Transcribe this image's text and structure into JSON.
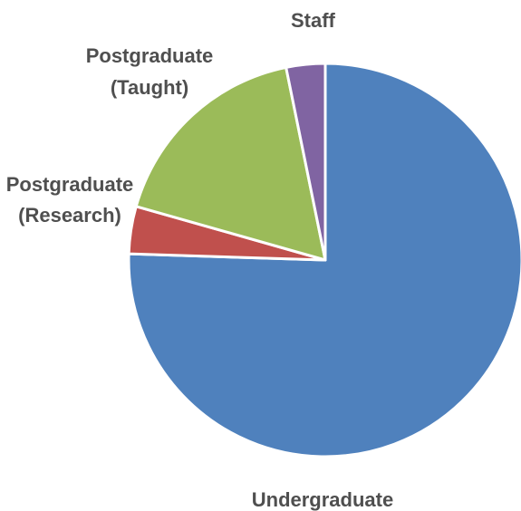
{
  "chart_data": {
    "type": "pie",
    "categories": [
      "Undergraduate",
      "Postgraduate (Research)",
      "Postgraduate (Taught)",
      "Staff"
    ],
    "values": [
      75.5,
      3.9,
      17.4,
      3.2
    ],
    "unit": "%",
    "start_angle": "12 o'clock",
    "direction": "clockwise",
    "colors": {
      "Undergraduate": "#4f81bd",
      "Postgraduate (Research)": "#c0504d",
      "Postgraduate (Taught)": "#9bbb59",
      "Staff": "#8064a2"
    },
    "labels": {
      "undergraduate": "Undergraduate",
      "postgraduate_research_line1": "Postgraduate",
      "postgraduate_research_line2": "(Research)",
      "postgraduate_taught_line1": "Postgraduate",
      "postgraduate_taught_line2": "(Taught)",
      "staff": "Staff"
    }
  }
}
